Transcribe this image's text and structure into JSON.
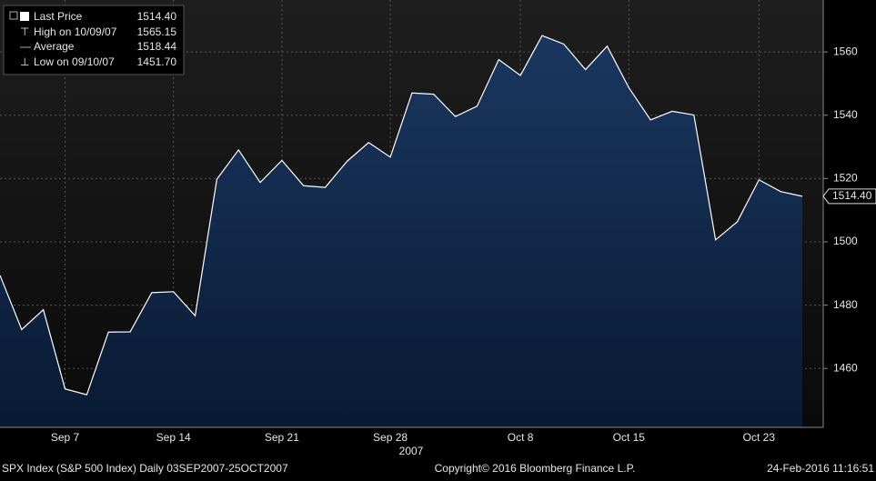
{
  "chart_data": {
    "type": "area",
    "categories": [
      null,
      null,
      null,
      "Sep 7",
      null,
      null,
      null,
      null,
      "Sep 14",
      null,
      null,
      null,
      null,
      "Sep 21",
      null,
      null,
      null,
      null,
      "Sep 28",
      null,
      null,
      null,
      null,
      null,
      "Oct 8",
      null,
      null,
      null,
      null,
      "Oct 15",
      null,
      null,
      null,
      null,
      null,
      "Oct 23",
      null,
      null
    ],
    "x_group_label": "2007",
    "series": [
      {
        "name": "Last Price",
        "color": "#ffffff",
        "fill": "#17325a",
        "values": [
          1489.42,
          1472.29,
          1478.55,
          1453.55,
          1451.7,
          1471.49,
          1471.56,
          1483.95,
          1484.25,
          1476.65,
          1519.78,
          1529.03,
          1518.75,
          1525.75,
          1517.73,
          1517.21,
          1525.42,
          1531.38,
          1526.75,
          1547.04,
          1546.63,
          1539.59,
          1542.84,
          1557.59,
          1552.58,
          1565.15,
          1562.47,
          1554.41,
          1561.8,
          1548.71,
          1538.53,
          1541.24,
          1540.08,
          1500.63,
          1506.33,
          1519.59,
          1515.88,
          1514.4
        ]
      }
    ],
    "ylim": [
      1441.4,
      1576.4
    ],
    "yticks": [
      1460,
      1480,
      1500,
      1520,
      1540,
      1560
    ],
    "grid": true,
    "legend": [
      {
        "label": "Last Price",
        "value": "1514.40"
      },
      {
        "label": "High on 10/09/07",
        "value": "1565.15"
      },
      {
        "label": "Average",
        "value": "1518.44"
      },
      {
        "label": "Low on 09/10/07",
        "value": "1451.70"
      }
    ],
    "last_price_tag": "1514.40",
    "footer": {
      "left": "SPX Index (S&P 500 Index)  Daily 03SEP2007-25OCT2007",
      "center": "Copyright© 2016 Bloomberg Finance L.P.",
      "right": "24-Feb-2016 11:16:51"
    }
  }
}
